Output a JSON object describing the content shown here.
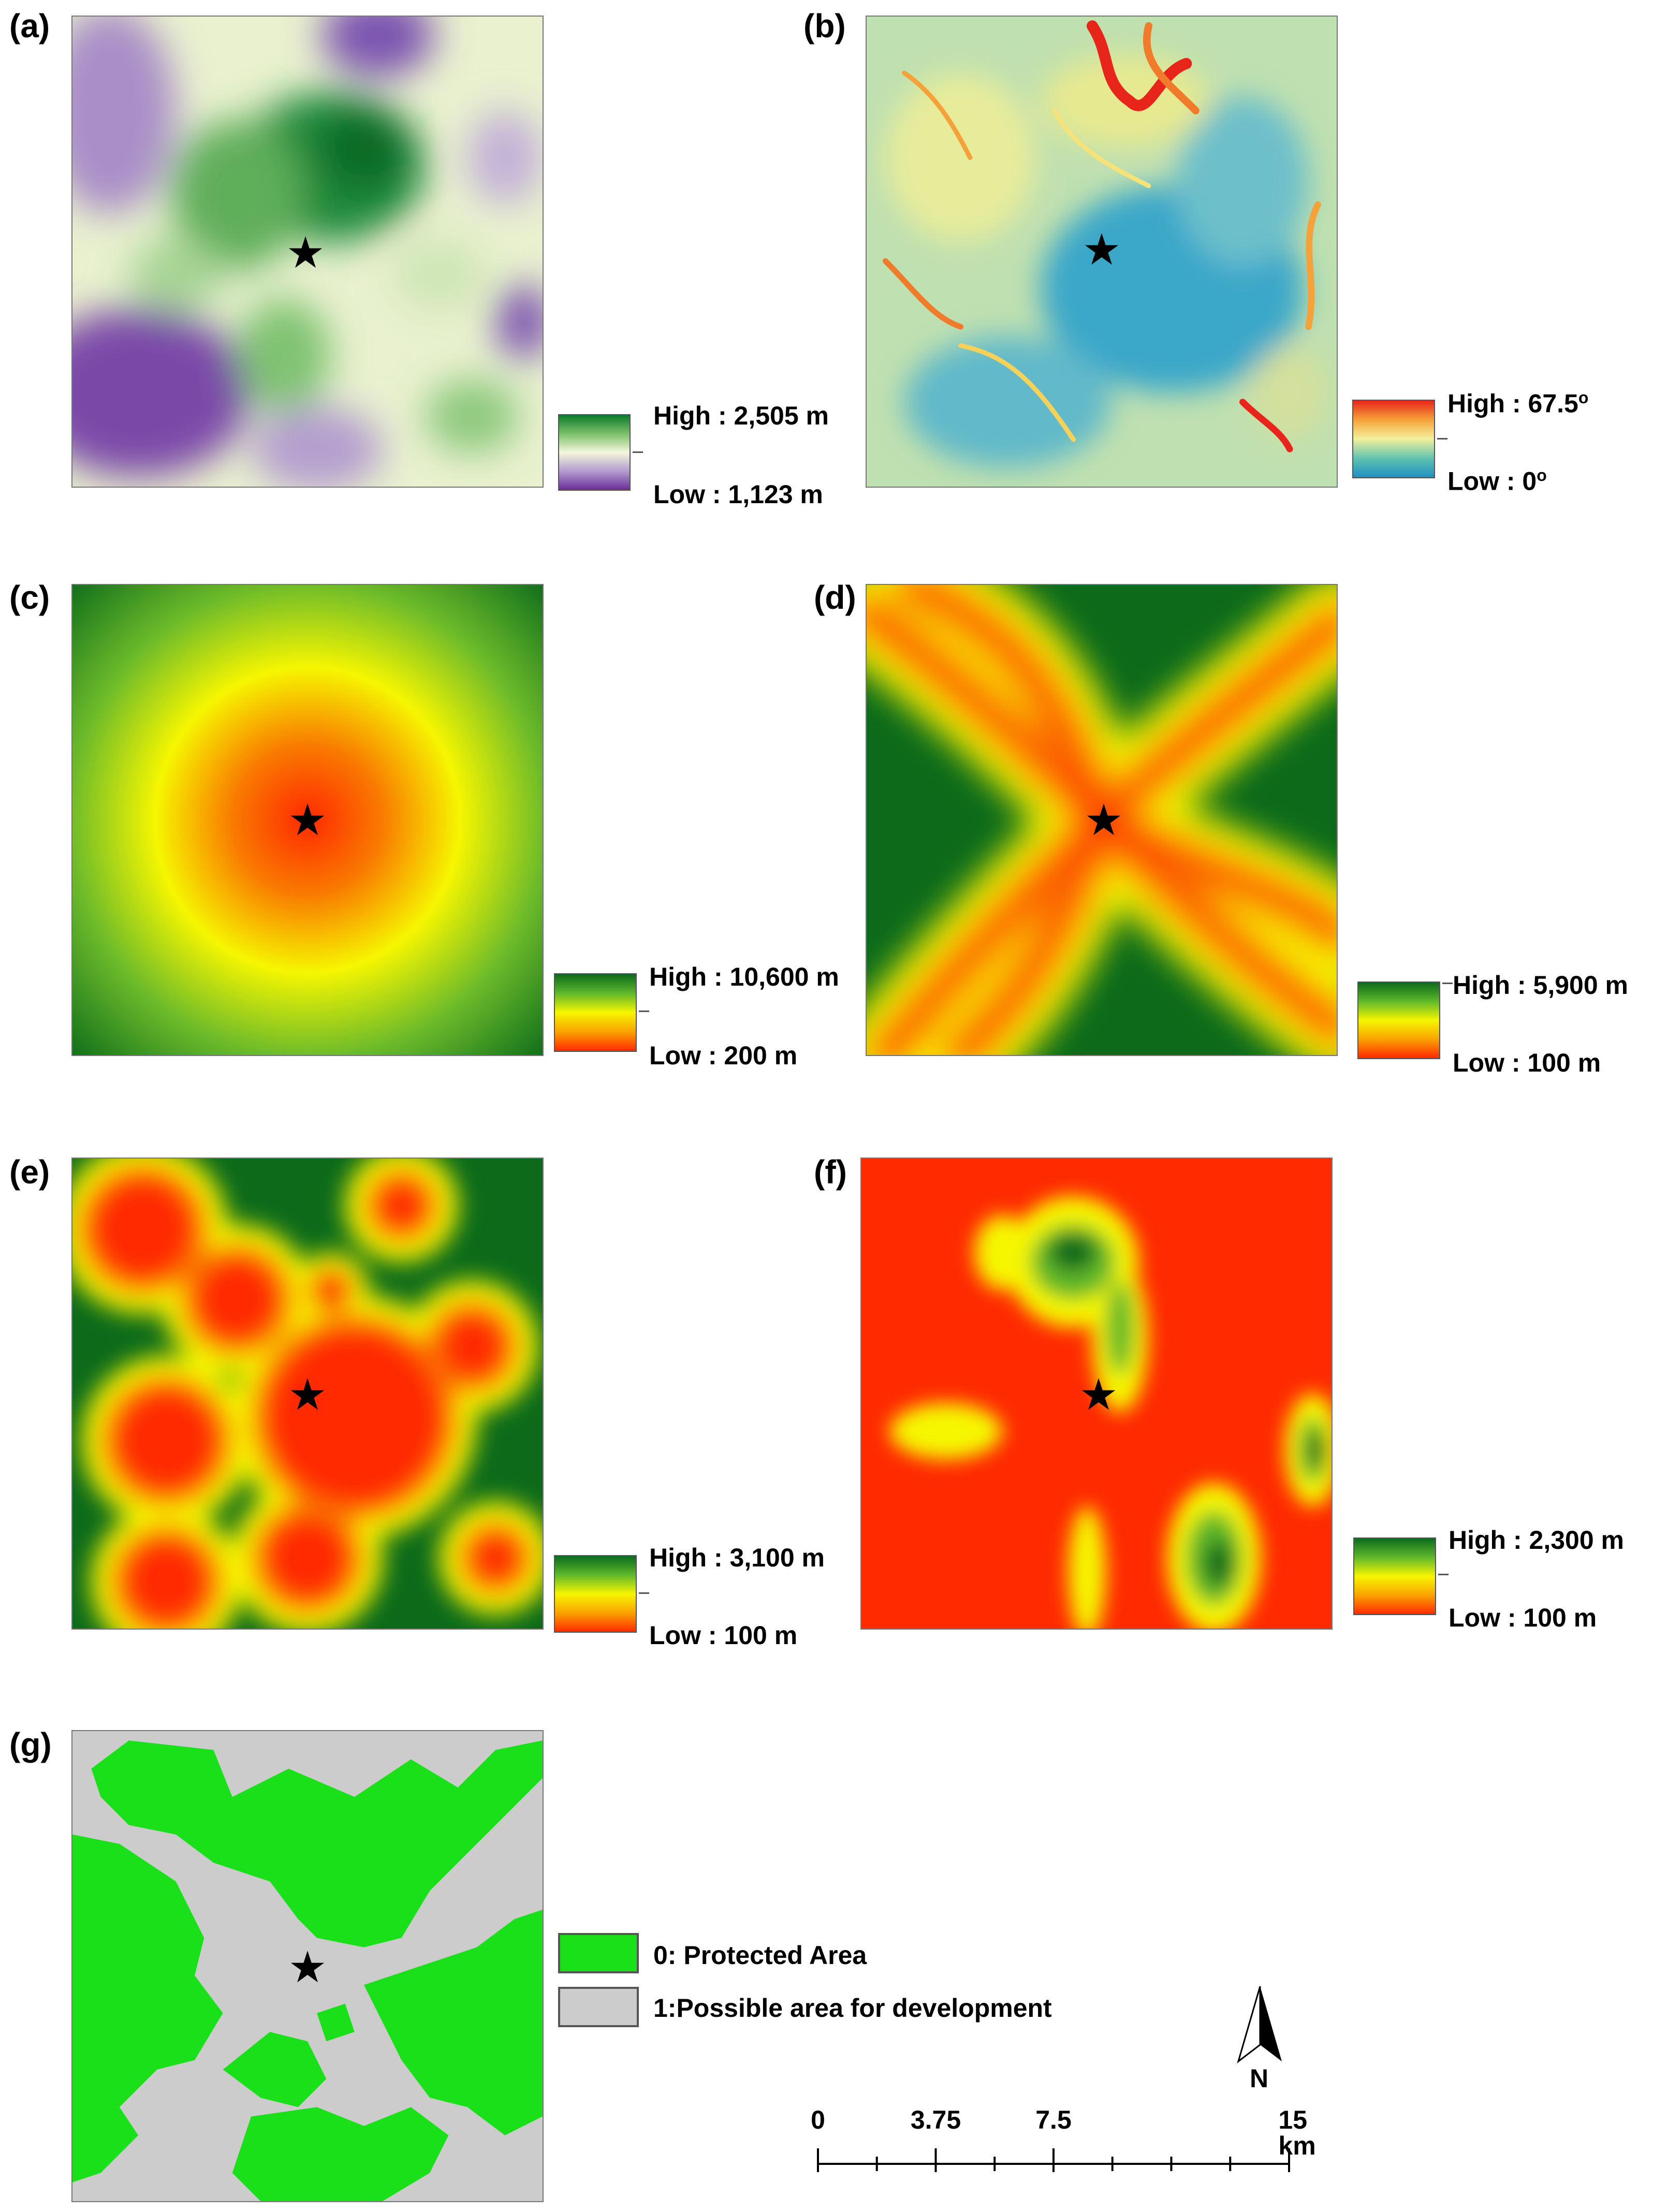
{
  "panels": [
    {
      "id": "a",
      "label": "(a)",
      "legend_high": "High : 2,505 m",
      "legend_low": "Low : 1,123 m",
      "ramp_colors": [
        "#0b7b2a",
        "#7cc06a",
        "#f4f7dc",
        "#b59bd0",
        "#6a2f9a"
      ]
    },
    {
      "id": "b",
      "label": "(b)",
      "legend_high": "High : 67.5",
      "legend_low": "Low : 0",
      "unit_sup": "o",
      "ramp_colors": [
        "#e8251a",
        "#f6a23a",
        "#f3f19c",
        "#62c3b0",
        "#1f8fc3"
      ]
    },
    {
      "id": "c",
      "label": "(c)",
      "legend_high": "High : 10,600 m",
      "legend_low": "Low : 200 m",
      "ramp_colors": [
        "#0b6b1a",
        "#5fb82c",
        "#f6f600",
        "#f9a300",
        "#ff2a00"
      ]
    },
    {
      "id": "d",
      "label": "(d)",
      "legend_high": "High : 5,900 m",
      "legend_low": "Low : 100 m",
      "ramp_colors": [
        "#0b6b1a",
        "#5fb82c",
        "#f6f600",
        "#f9a300",
        "#ff2a00"
      ]
    },
    {
      "id": "e",
      "label": "(e)",
      "legend_high": "High : 3,100 m",
      "legend_low": "Low : 100 m",
      "ramp_colors": [
        "#0b6b1a",
        "#5fb82c",
        "#f6f600",
        "#f9a300",
        "#ff2a00"
      ]
    },
    {
      "id": "f",
      "label": "(f)",
      "legend_high": "High : 2,300 m",
      "legend_low": "Low : 100 m",
      "ramp_colors": [
        "#0b6b1a",
        "#5fb82c",
        "#f6f600",
        "#f9a300",
        "#ff2a00"
      ]
    },
    {
      "id": "g",
      "label": "(g)"
    }
  ],
  "legend_g": {
    "protected": {
      "label": "0: Protected Area",
      "color": "#19e019"
    },
    "development": {
      "label": "1:Possible area for development",
      "color": "#cccccc"
    }
  },
  "scale_bar": {
    "ticks": [
      "0",
      "3.75",
      "7.5",
      "15 km"
    ],
    "max_km": 15
  },
  "north_arrow": {
    "label": "N"
  },
  "star_symbol": "★",
  "colors": {
    "green_dark": "#0b6b1a",
    "red": "#ff2a00",
    "yellow": "#f6f600",
    "purple": "#6a2f9a",
    "protected": "#19e019",
    "development": "#cccccc"
  }
}
